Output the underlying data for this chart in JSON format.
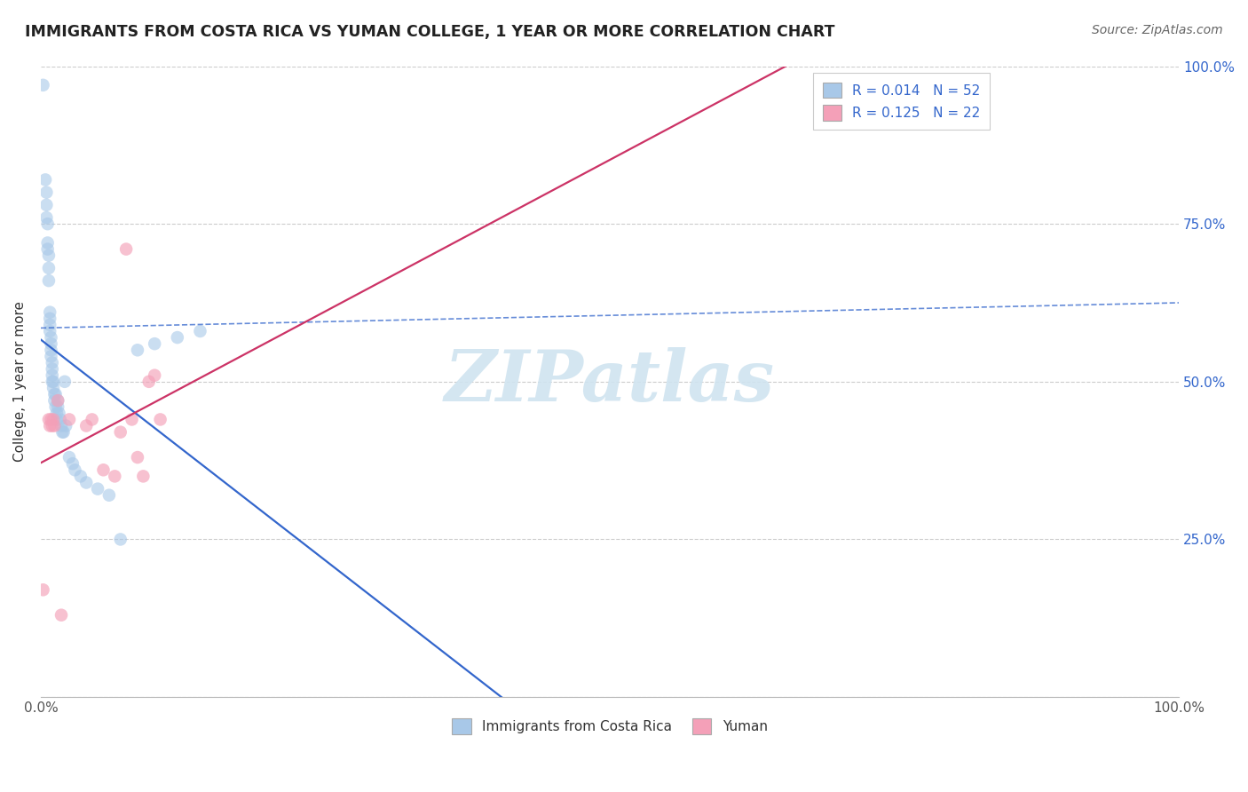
{
  "title": "IMMIGRANTS FROM COSTA RICA VS YUMAN COLLEGE, 1 YEAR OR MORE CORRELATION CHART",
  "source_text": "Source: ZipAtlas.com",
  "ylabel": "College, 1 year or more",
  "R1": "0.014",
  "N1": "52",
  "R2": "0.125",
  "N2": "22",
  "legend1_label": "Immigrants from Costa Rica",
  "legend2_label": "Yuman",
  "blue_color": "#a8c8e8",
  "pink_color": "#f4a0b8",
  "blue_line_color": "#3366cc",
  "pink_line_color": "#cc3366",
  "blue_line_dash": true,
  "watermark_text": "ZIPatlas",
  "watermark_color": "#d0e4f0",
  "xlim": [
    0.0,
    1.0
  ],
  "ylim": [
    0.0,
    1.0
  ],
  "xticks": [
    0.0,
    1.0
  ],
  "xtick_labels": [
    "0.0%",
    "100.0%"
  ],
  "yticks": [
    0.0,
    0.25,
    0.5,
    0.75,
    1.0
  ],
  "ytick_labels_right": [
    "",
    "25.0%",
    "50.0%",
    "75.0%",
    "100.0%"
  ],
  "grid_color": "#cccccc",
  "blue_x": [
    0.002,
    0.004,
    0.005,
    0.005,
    0.005,
    0.006,
    0.006,
    0.006,
    0.007,
    0.007,
    0.007,
    0.008,
    0.008,
    0.008,
    0.008,
    0.009,
    0.009,
    0.009,
    0.009,
    0.01,
    0.01,
    0.01,
    0.01,
    0.011,
    0.011,
    0.012,
    0.012,
    0.013,
    0.013,
    0.014,
    0.014,
    0.015,
    0.015,
    0.016,
    0.017,
    0.018,
    0.019,
    0.02,
    0.021,
    0.022,
    0.025,
    0.028,
    0.03,
    0.035,
    0.04,
    0.05,
    0.06,
    0.07,
    0.085,
    0.1,
    0.12,
    0.14
  ],
  "blue_y": [
    0.97,
    0.82,
    0.8,
    0.76,
    0.78,
    0.75,
    0.72,
    0.71,
    0.68,
    0.7,
    0.66,
    0.6,
    0.58,
    0.59,
    0.61,
    0.57,
    0.55,
    0.56,
    0.54,
    0.53,
    0.52,
    0.5,
    0.51,
    0.5,
    0.49,
    0.48,
    0.47,
    0.46,
    0.48,
    0.45,
    0.44,
    0.46,
    0.47,
    0.45,
    0.44,
    0.43,
    0.42,
    0.42,
    0.5,
    0.43,
    0.38,
    0.37,
    0.36,
    0.35,
    0.34,
    0.33,
    0.32,
    0.25,
    0.55,
    0.56,
    0.57,
    0.58
  ],
  "pink_x": [
    0.002,
    0.007,
    0.008,
    0.009,
    0.01,
    0.011,
    0.012,
    0.015,
    0.018,
    0.025,
    0.04,
    0.045,
    0.055,
    0.065,
    0.07,
    0.075,
    0.08,
    0.085,
    0.09,
    0.095,
    0.1,
    0.105
  ],
  "pink_y": [
    0.17,
    0.44,
    0.43,
    0.44,
    0.43,
    0.44,
    0.43,
    0.47,
    0.13,
    0.44,
    0.43,
    0.44,
    0.36,
    0.35,
    0.42,
    0.71,
    0.44,
    0.38,
    0.35,
    0.5,
    0.51,
    0.44
  ]
}
